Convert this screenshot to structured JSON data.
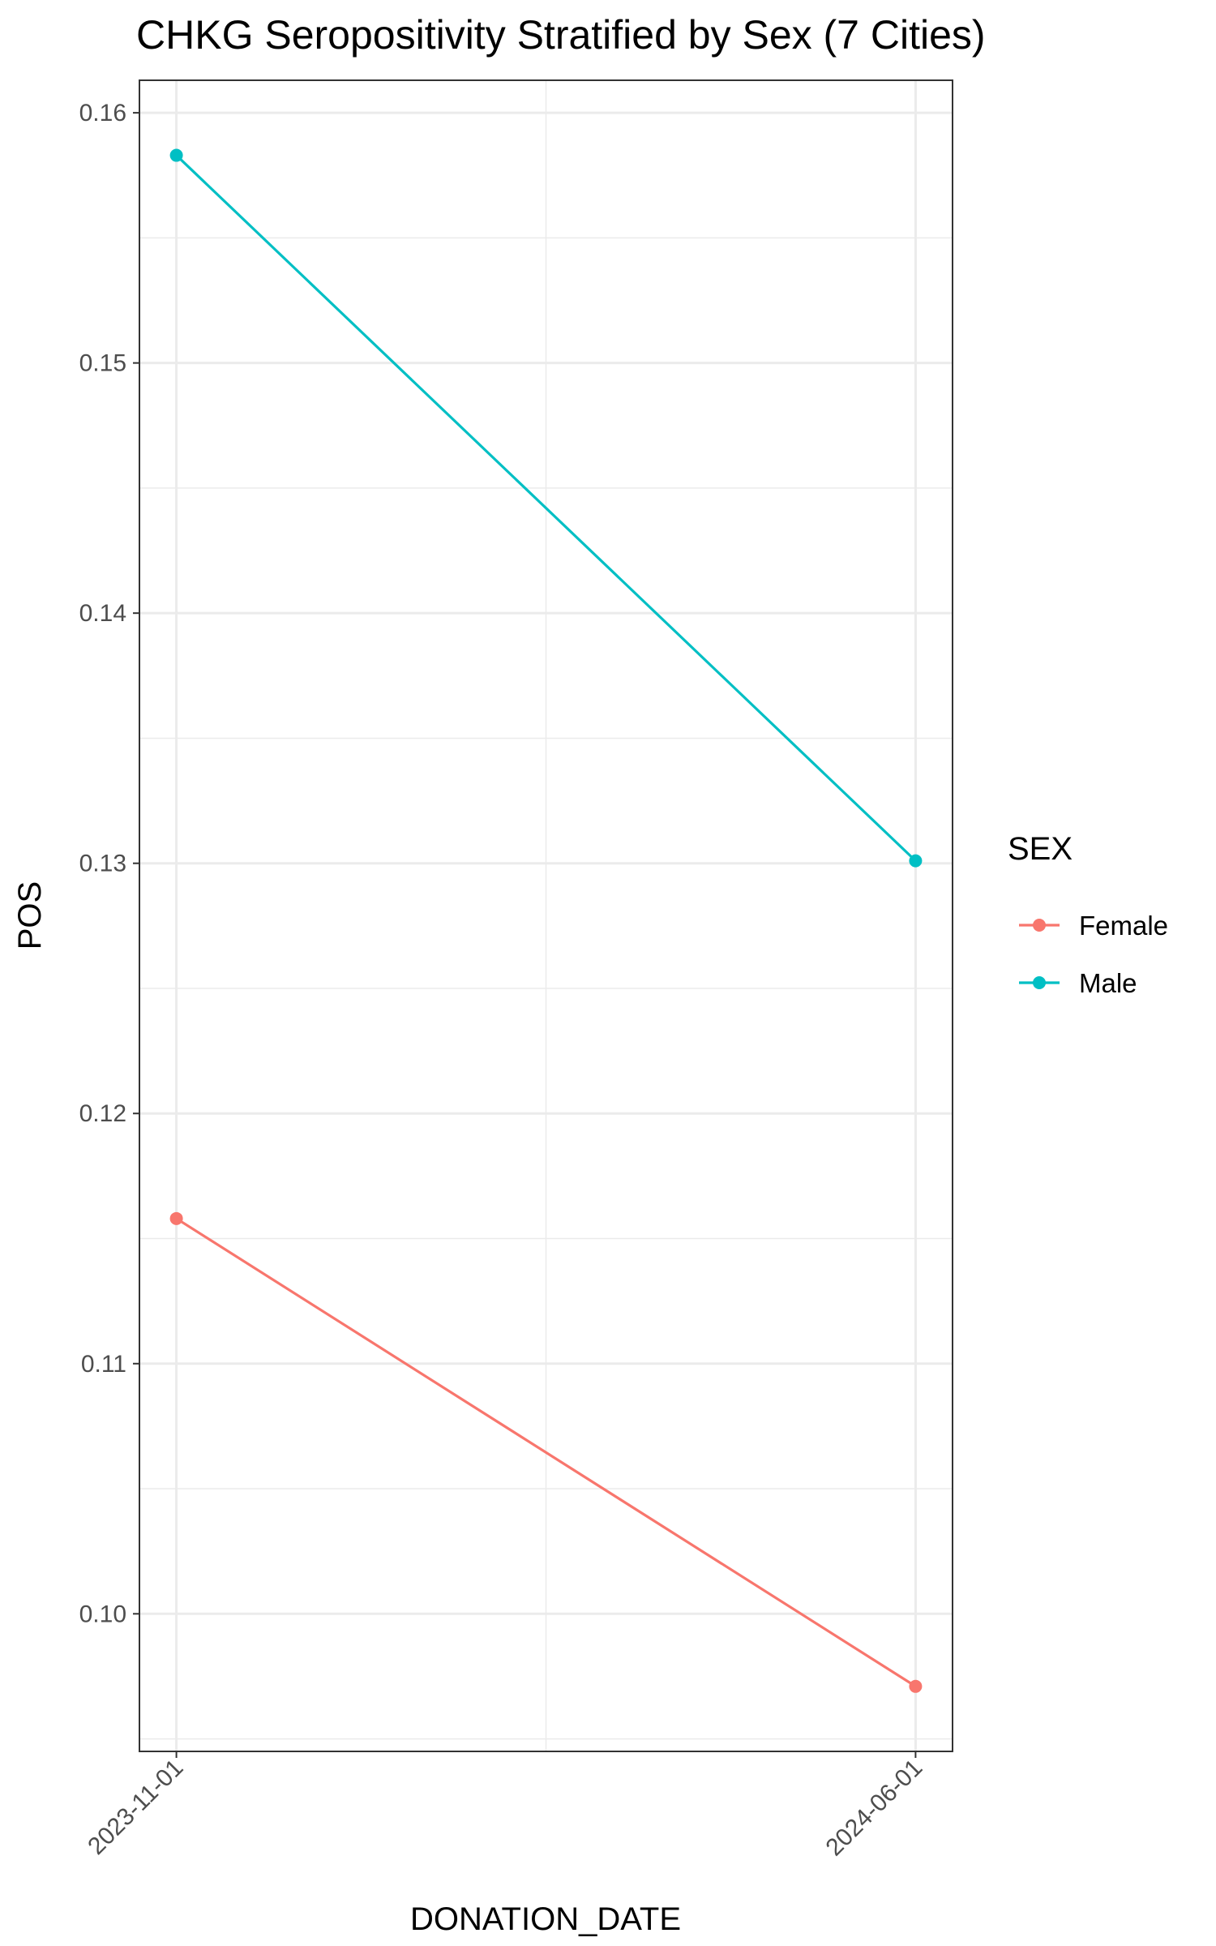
{
  "chart_data": {
    "type": "line",
    "title": "CHKG Seropositivity Stratified by Sex (7 Cities)",
    "xlabel": "DONATION_DATE",
    "ylabel": "POS",
    "categories": [
      "2023-11-01",
      "2024-06-01"
    ],
    "x_range_days": 213,
    "ylim": [
      0.0945,
      0.1613
    ],
    "yticks": [
      0.1,
      0.11,
      0.12,
      0.13,
      0.14,
      0.15,
      0.16
    ],
    "ytick_labels": [
      "0.10",
      "0.11",
      "0.12",
      "0.13",
      "0.14",
      "0.15",
      "0.16"
    ],
    "grid": true,
    "legend_title": "SEX",
    "legend_position": "right",
    "series": [
      {
        "name": "Female",
        "color": "#F8766D",
        "values": [
          0.1158,
          0.0971
        ]
      },
      {
        "name": "Male",
        "color": "#00BFC4",
        "values": [
          0.1583,
          0.1301
        ]
      }
    ]
  }
}
